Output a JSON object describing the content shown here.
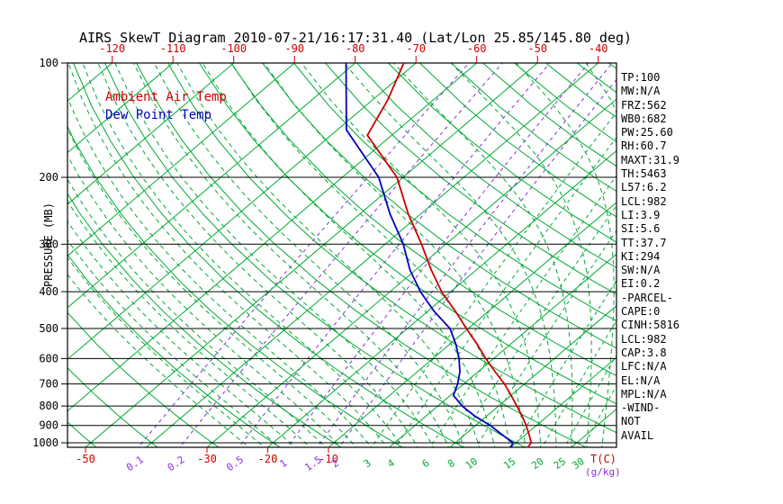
{
  "title": "AIRS SkewT Diagram 2010-07-21/16:17:31.40 (Lat/Lon 25.85/145.80 deg)",
  "legend": {
    "temp": "Ambient Air Temp",
    "dewpoint": "Dew Point Temp"
  },
  "stats": {
    "lines": [
      "TP:100",
      "MW:N/A",
      "FRZ:562",
      "WB0:682",
      "PW:25.60",
      "RH:60.7",
      "MAXT:31.9",
      "TH:5463",
      "L57:6.2",
      "LCL:982",
      "LI:3.9",
      "SI:5.6",
      "TT:37.7",
      "KI:294",
      "SW:N/A",
      "EI:0.2",
      "-PARCEL-",
      "CAPE:0",
      "CINH:5816",
      "LCL:982",
      "CAP:3.8",
      "LFC:N/A",
      "EL:N/A",
      "MPL:N/A",
      "-WIND-",
      "NOT",
      "AVAIL"
    ]
  },
  "colors": {
    "temp": "#cc0000",
    "dewpoint": "#0000bb",
    "isotherm": "#00aa33",
    "mixing": "#8a2be2",
    "axis": "#000000",
    "background": "#ffffff"
  },
  "chart_data": {
    "type": "line",
    "title": "AIRS SkewT Diagram (skew-T log-P sounding)",
    "y_axis": {
      "label": "PRESSURE (MB)",
      "unit": "mb",
      "scale": "log",
      "range": [
        100,
        1030
      ],
      "ticks_mb": [
        100,
        200,
        300,
        400,
        500,
        600,
        700,
        800,
        900,
        1000
      ]
    },
    "x_axis": {
      "label": "T(C)",
      "unit": "C",
      "skewed": true,
      "top_ticks_c": [
        -120,
        -110,
        -100,
        -90,
        -80,
        -70,
        -60,
        -50,
        -40
      ],
      "bottom_ticks_c": [
        -50,
        -30,
        -20,
        -10
      ]
    },
    "mixing_ratio_label": "(g/kg)",
    "grid": {
      "isotherms_c": {
        "min": -150,
        "max": 50,
        "step": 10
      },
      "dry_adiabats_theta_c": {
        "min": -50,
        "max": 190,
        "step": 10
      },
      "moist_adiabats_start_c": {
        "min": -22,
        "max": 40,
        "step": 2.5
      },
      "mixing_ratio_g_kg": [
        0.1,
        0.2,
        0.5,
        1,
        1.5,
        2,
        3,
        4,
        6,
        8,
        10,
        15,
        20,
        25,
        30
      ],
      "mixing_ratio_purple_max": 2
    },
    "series": [
      {
        "name": "Ambient Air Temp",
        "color_key": "temp",
        "points_p_t": [
          [
            100,
            -72
          ],
          [
            125,
            -67.5
          ],
          [
            155,
            -64
          ],
          [
            200,
            -51
          ],
          [
            250,
            -42
          ],
          [
            300,
            -34
          ],
          [
            350,
            -27.5
          ],
          [
            400,
            -21.5
          ],
          [
            450,
            -15.5
          ],
          [
            500,
            -10.3
          ],
          [
            550,
            -5.5
          ],
          [
            600,
            -1.3
          ],
          [
            650,
            2.8
          ],
          [
            700,
            6.7
          ],
          [
            750,
            10
          ],
          [
            800,
            13
          ],
          [
            850,
            15.8
          ],
          [
            900,
            18.3
          ],
          [
            950,
            20.5
          ],
          [
            1000,
            22.5
          ],
          [
            1028,
            22.8
          ]
        ]
      },
      {
        "name": "Dew Point Temp",
        "color_key": "dewpoint",
        "points_p_t": [
          [
            100,
            -81.5
          ],
          [
            150,
            -68.5
          ],
          [
            200,
            -54
          ],
          [
            250,
            -45
          ],
          [
            300,
            -37
          ],
          [
            350,
            -31
          ],
          [
            400,
            -25
          ],
          [
            450,
            -19
          ],
          [
            500,
            -13
          ],
          [
            550,
            -9
          ],
          [
            600,
            -5.7
          ],
          [
            650,
            -3
          ],
          [
            700,
            -1
          ],
          [
            750,
            0.5
          ],
          [
            800,
            4
          ],
          [
            850,
            8
          ],
          [
            900,
            12.4
          ],
          [
            950,
            16
          ],
          [
            1000,
            19.5
          ],
          [
            1028,
            20
          ]
        ]
      }
    ]
  }
}
